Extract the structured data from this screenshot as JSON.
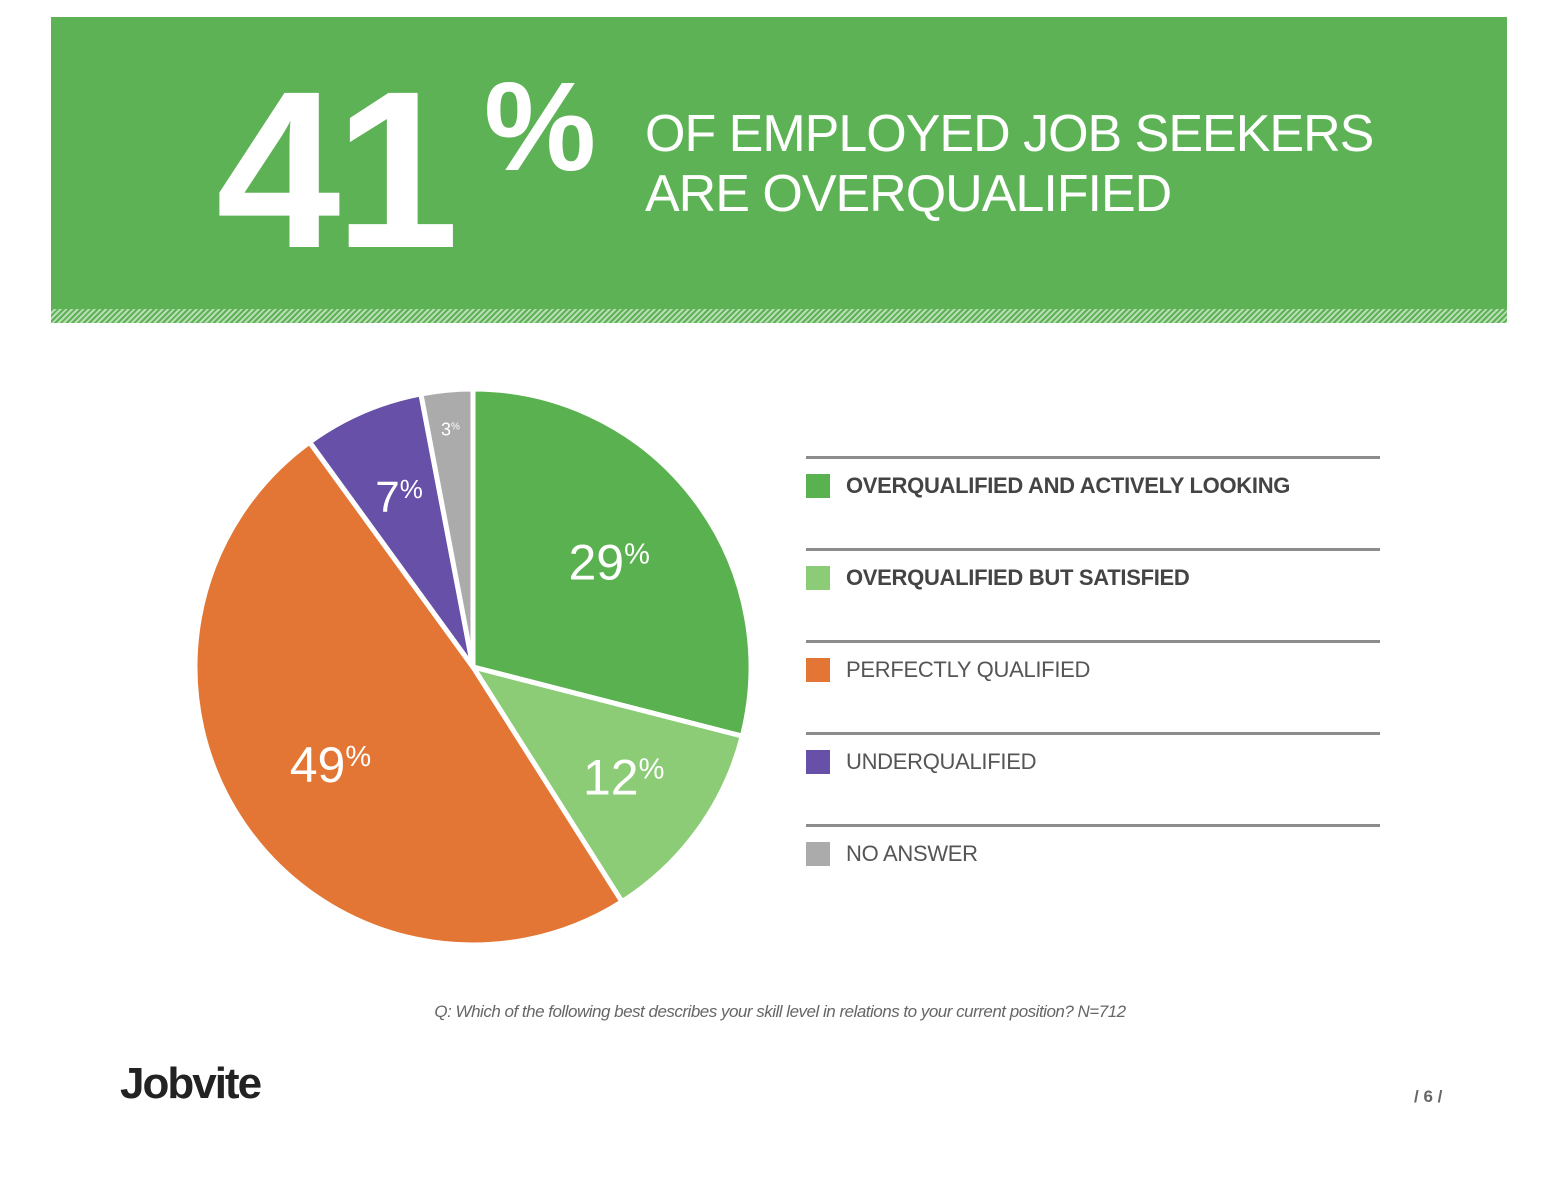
{
  "header": {
    "big_number": "41",
    "big_percent": "%",
    "headline_line1": "OF EMPLOYED JOB SEEKERS",
    "headline_line2": "ARE OVERQUALIFIED",
    "colors": {
      "banner": "#5db255"
    }
  },
  "chart_data": {
    "type": "pie",
    "title": "41% OF EMPLOYED JOB SEEKERS ARE OVERQUALIFIED",
    "categories": [
      "OVERQUALIFIED AND ACTIVELY LOOKING",
      "OVERQUALIFIED BUT SATISFIED",
      "PERFECTLY QUALIFIED",
      "UNDERQUALIFIED",
      "NO ANSWER"
    ],
    "values": [
      29,
      12,
      49,
      7,
      3
    ],
    "labels": [
      "29",
      "12",
      "49",
      "7",
      "3"
    ],
    "unit": "%",
    "colors": [
      "#5ab14f",
      "#8ccc76",
      "#e37634",
      "#6750a8",
      "#ababab"
    ],
    "legend_position": "right",
    "start_angle_deg": 0
  },
  "legend": {
    "items": [
      {
        "label": "OVERQUALIFIED AND ACTIVELY LOOKING",
        "color": "#5ab14f",
        "bold": true
      },
      {
        "label": "OVERQUALIFIED BUT SATISFIED",
        "color": "#8ccc76",
        "bold": true
      },
      {
        "label": "PERFECTLY QUALIFIED",
        "color": "#e37634",
        "bold": false
      },
      {
        "label": "UNDERQUALIFIED",
        "color": "#6750a8",
        "bold": false
      },
      {
        "label": "NO ANSWER",
        "color": "#ababab",
        "bold": false
      }
    ]
  },
  "footer": {
    "question": "Q: Which of the following best describes your skill level in relations to your current position? N=712",
    "logo": "Jobvite",
    "page": "/ 6 /"
  }
}
